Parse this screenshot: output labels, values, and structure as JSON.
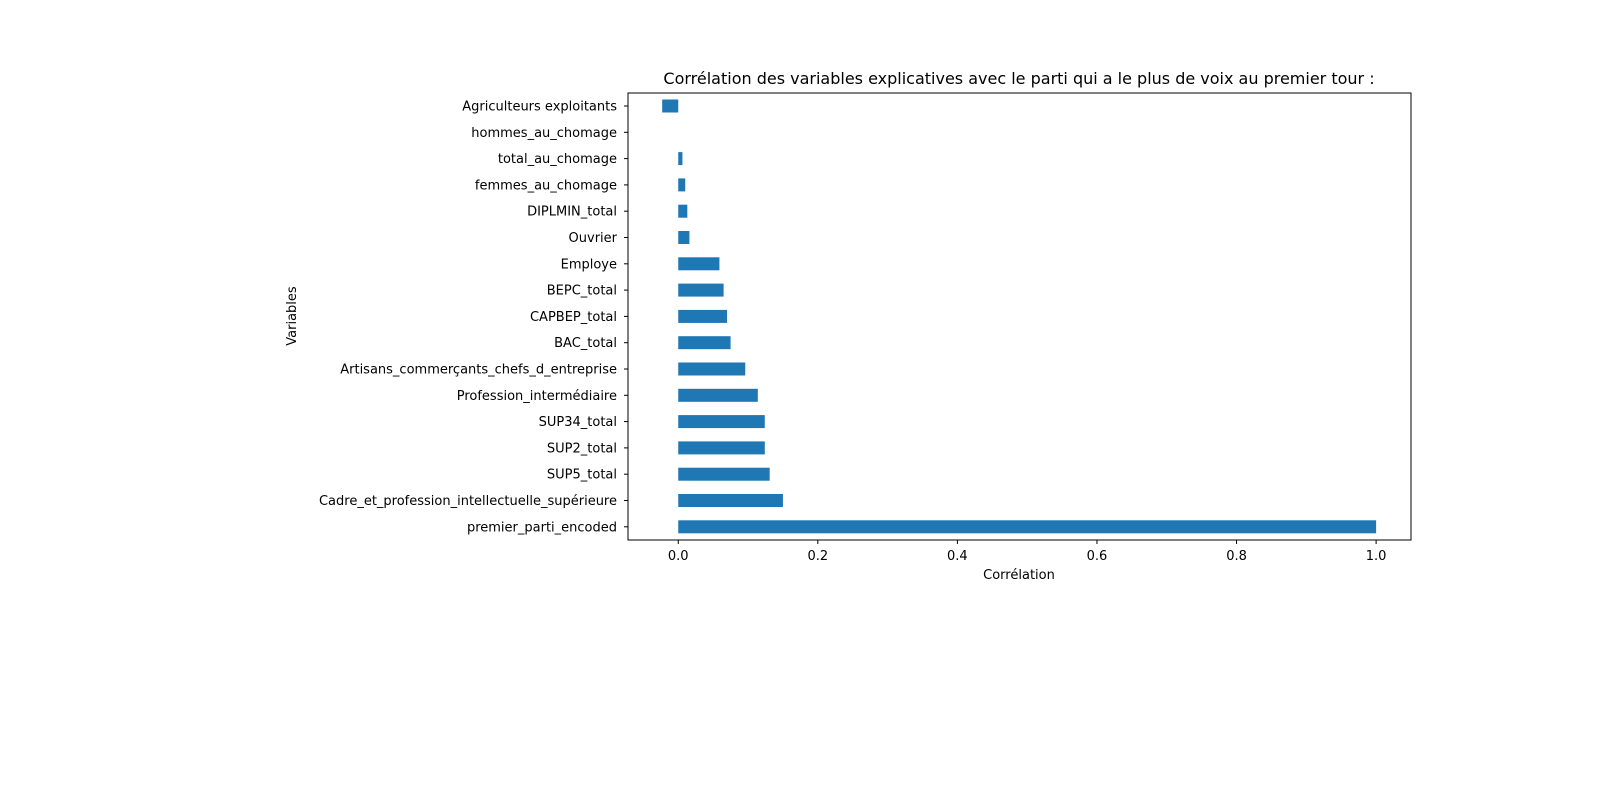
{
  "chart_data": {
    "type": "bar",
    "orientation": "horizontal",
    "title": "Corrélation des variables explicatives avec le parti qui a le plus de voix au premier tour :",
    "xlabel": "Corrélation",
    "ylabel": "Variables",
    "categories": [
      "Agriculteurs exploitants",
      "hommes_au_chomage",
      "total_au_chomage",
      "femmes_au_chomage",
      "DIPLMIN_total",
      "Ouvrier",
      "Employe",
      "BEPC_total",
      "CAPBEP_total",
      "BAC_total",
      "Artisans_commerçants_chefs_d_entreprise",
      "Profession_intermédiaire",
      "SUP34_total",
      "SUP2_total",
      "SUP5_total",
      "Cadre_et_profession_intellectuelle_supérieure",
      "premier_parti_encoded"
    ],
    "values": [
      -0.023,
      0.0,
      0.006,
      0.01,
      0.013,
      0.016,
      0.059,
      0.065,
      0.07,
      0.075,
      0.096,
      0.114,
      0.124,
      0.124,
      0.131,
      0.15,
      1.0
    ],
    "xlim": [
      -0.072,
      1.05
    ],
    "xticks": [
      0.0,
      0.2,
      0.4,
      0.6,
      0.8,
      1.0
    ],
    "xtick_labels": [
      "0.0",
      "0.2",
      "0.4",
      "0.6",
      "0.8",
      "1.0"
    ],
    "grid": false,
    "legend": "none",
    "bar_color": "#1f77b4"
  }
}
